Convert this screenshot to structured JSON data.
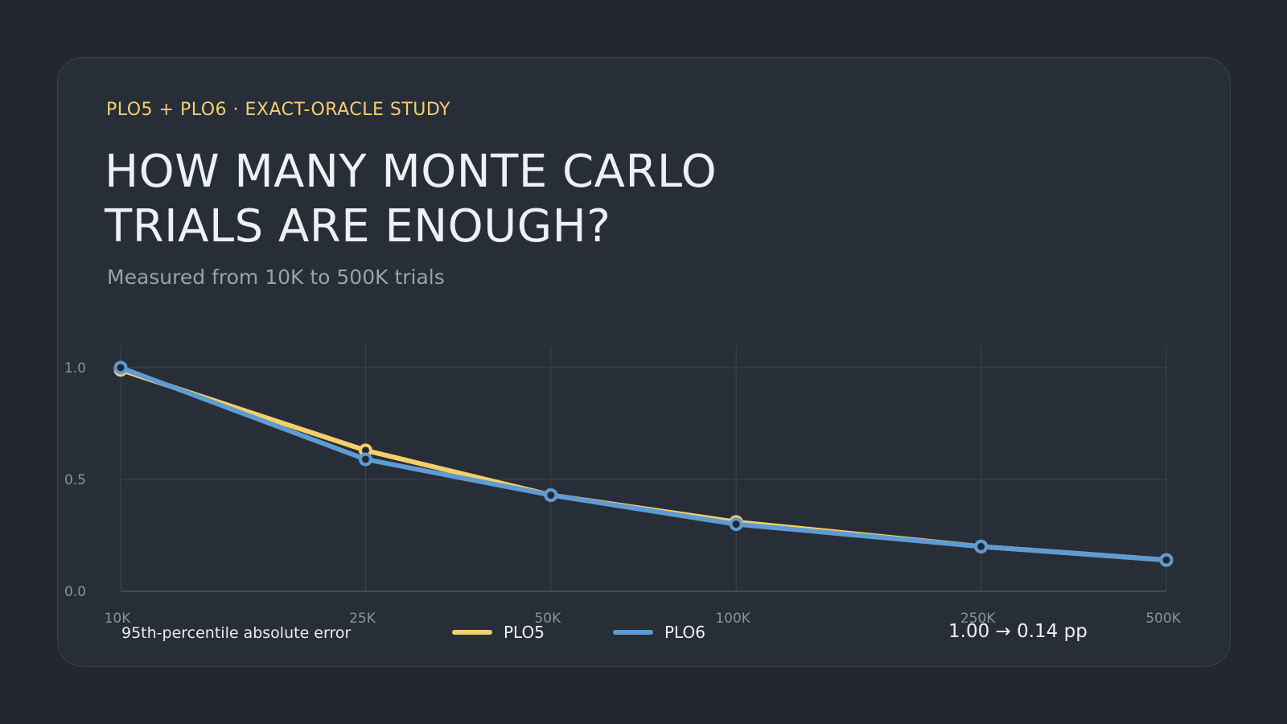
{
  "header": {
    "eyebrow": "PLO5 + PLO6 · EXACT-ORACLE STUDY",
    "title_line1": "HOW MANY MONTE CARLO",
    "title_line2": "TRIALS ARE ENOUGH?",
    "subtitle": "Measured from 10K to 500K trials"
  },
  "footer": {
    "metric_label": "95th-percentile absolute error",
    "delta_text": "1.00 → 0.14 pp"
  },
  "colors": {
    "background": "#222731",
    "card": "#282e38",
    "accent": "#f5cd6e",
    "plo5": "#f6cf6a",
    "plo6": "#5f9bd3",
    "grid": "#3d4450"
  },
  "chart_data": {
    "type": "line",
    "categories": [
      "10K",
      "25K",
      "50K",
      "100K",
      "250K",
      "500K"
    ],
    "x": [
      10000,
      25000,
      50000,
      100000,
      250000,
      500000
    ],
    "x_scale": "log",
    "ylim": [
      0,
      1.0
    ],
    "yticks": [
      "0.0",
      "0.5",
      "1.0"
    ],
    "ytick_values": [
      0,
      0.5,
      1.0
    ],
    "grid": true,
    "legend_position": "bottom-center",
    "xlabel": "",
    "ylabel": "",
    "series": [
      {
        "name": "PLO5",
        "color": "#f6cf6a",
        "values": [
          0.99,
          0.63,
          0.43,
          0.31,
          0.2,
          0.14
        ]
      },
      {
        "name": "PLO6",
        "color": "#5f9bd3",
        "values": [
          1.0,
          0.59,
          0.43,
          0.3,
          0.2,
          0.14
        ]
      }
    ]
  }
}
